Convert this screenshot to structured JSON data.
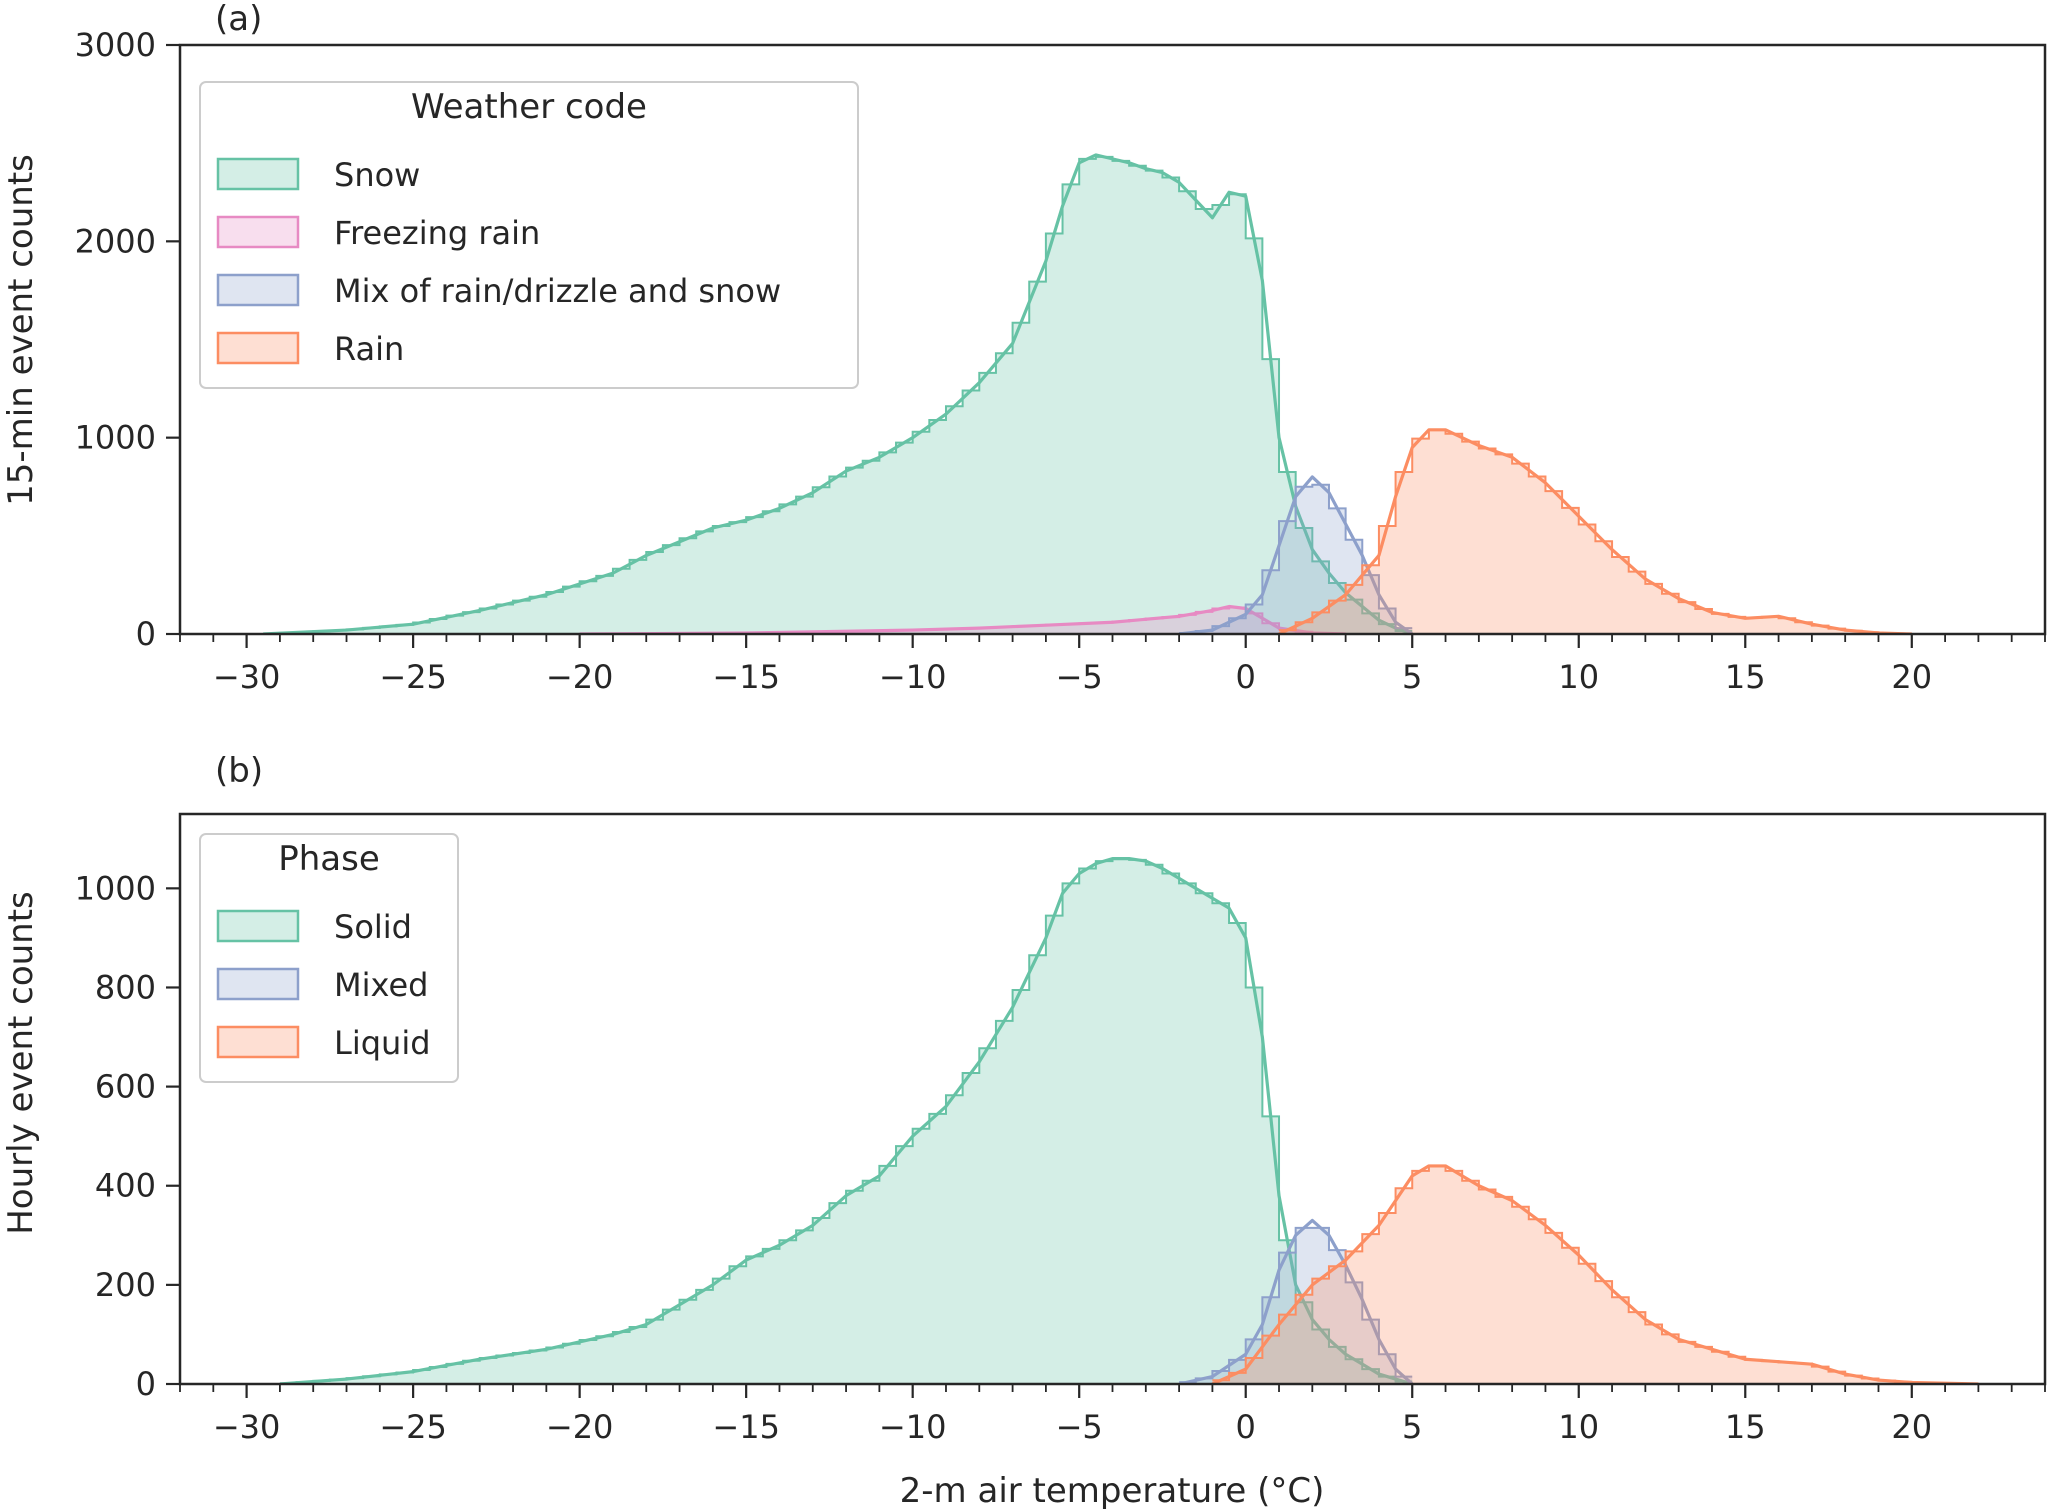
{
  "chart_data": [
    {
      "type": "area",
      "panel_label": "(a)",
      "ylabel": "15-min event counts",
      "xlabel": "",
      "xlim": [
        -32,
        24
      ],
      "ylim": [
        0,
        3000
      ],
      "xticks": [
        -30,
        -25,
        -20,
        -15,
        -10,
        -5,
        0,
        5,
        10,
        15,
        20
      ],
      "xtick_labels": [
        "−30",
        "−25",
        "−20",
        "−15",
        "−10",
        "−5",
        "0",
        "5",
        "10",
        "15",
        "20"
      ],
      "yticks": [
        0,
        1000,
        2000,
        3000
      ],
      "ytick_labels": [
        "0",
        "1000",
        "2000",
        "3000"
      ],
      "legend_title": "Weather code",
      "legend_position": "top-left",
      "grid": false,
      "bin_width": 0.5,
      "series": [
        {
          "name": "Snow",
          "color": "#66c2a5",
          "x": [
            -29.5,
            -27,
            -25,
            -23,
            -21,
            -19,
            -18,
            -17,
            -16,
            -15,
            -14,
            -13,
            -12,
            -11,
            -10,
            -9,
            -8,
            -7,
            -6,
            -5.5,
            -5,
            -4.5,
            -4,
            -3.5,
            -3,
            -2.5,
            -2,
            -1.5,
            -1,
            -0.5,
            0,
            0.5,
            1,
            1.5,
            2,
            2.5,
            3,
            3.5,
            4,
            4.5,
            5
          ],
          "y": [
            0,
            20,
            50,
            120,
            200,
            310,
            400,
            470,
            540,
            580,
            640,
            720,
            830,
            900,
            1000,
            1120,
            1280,
            1480,
            1900,
            2180,
            2400,
            2440,
            2420,
            2400,
            2370,
            2350,
            2300,
            2210,
            2120,
            2250,
            2230,
            1800,
            1000,
            650,
            430,
            310,
            210,
            140,
            70,
            30,
            0
          ]
        },
        {
          "name": "Freezing rain",
          "color": "#e78ac3",
          "x": [
            -20,
            -15,
            -10,
            -8,
            -6,
            -4,
            -2,
            -1,
            -0.5,
            0,
            0.5,
            1,
            2,
            3
          ],
          "y": [
            0,
            5,
            20,
            30,
            45,
            60,
            90,
            120,
            140,
            130,
            80,
            30,
            5,
            0
          ]
        },
        {
          "name": "Mix of rain/drizzle and snow",
          "color": "#8da0cb",
          "x": [
            -2,
            -1,
            0,
            0.5,
            1,
            1.5,
            2,
            2.5,
            3,
            3.5,
            4,
            4.5,
            5
          ],
          "y": [
            0,
            20,
            100,
            200,
            450,
            700,
            800,
            720,
            560,
            400,
            200,
            60,
            0
          ]
        },
        {
          "name": "Rain",
          "color": "#fc8d62",
          "x": [
            1,
            2,
            3,
            4,
            4.5,
            5,
            5.5,
            6,
            6.5,
            7,
            8,
            9,
            10,
            11,
            12,
            13,
            14,
            15,
            16,
            17,
            18,
            19,
            20
          ],
          "y": [
            0,
            80,
            200,
            400,
            700,
            950,
            1040,
            1040,
            1000,
            960,
            900,
            770,
            600,
            430,
            280,
            180,
            110,
            80,
            90,
            50,
            20,
            5,
            0
          ]
        }
      ]
    },
    {
      "type": "area",
      "panel_label": "(b)",
      "ylabel": "Hourly event counts",
      "xlabel": "2-m air temperature (°C)",
      "xlim": [
        -32,
        24
      ],
      "ylim": [
        0,
        1150
      ],
      "xticks": [
        -30,
        -25,
        -20,
        -15,
        -10,
        -5,
        0,
        5,
        10,
        15,
        20
      ],
      "xtick_labels": [
        "−30",
        "−25",
        "−20",
        "−15",
        "−10",
        "−5",
        "0",
        "5",
        "10",
        "15",
        "20"
      ],
      "yticks": [
        0,
        200,
        400,
        600,
        800,
        1000
      ],
      "ytick_labels": [
        "0",
        "200",
        "400",
        "600",
        "800",
        "1000"
      ],
      "legend_title": "Phase",
      "legend_position": "top-left",
      "grid": false,
      "bin_width": 0.5,
      "series": [
        {
          "name": "Solid",
          "color": "#66c2a5",
          "x": [
            -29,
            -27,
            -25,
            -23,
            -21,
            -19,
            -18,
            -17,
            -16,
            -15,
            -14,
            -13,
            -12,
            -11,
            -10,
            -9,
            -8,
            -7,
            -6,
            -5.5,
            -5,
            -4.5,
            -4,
            -3.5,
            -3,
            -2.5,
            -2,
            -1.5,
            -1,
            -0.5,
            0,
            0.5,
            1,
            1.5,
            2,
            2.5,
            3,
            3.5,
            4,
            4.5,
            5
          ],
          "y": [
            0,
            10,
            25,
            50,
            70,
            100,
            120,
            160,
            200,
            250,
            280,
            320,
            380,
            420,
            500,
            560,
            650,
            760,
            900,
            990,
            1030,
            1050,
            1060,
            1060,
            1055,
            1040,
            1020,
            1000,
            980,
            960,
            900,
            700,
            380,
            200,
            130,
            90,
            60,
            40,
            20,
            10,
            0
          ]
        },
        {
          "name": "Mixed",
          "color": "#8da0cb",
          "x": [
            -2,
            -1,
            0,
            0.5,
            1,
            1.5,
            2,
            2.5,
            3,
            3.5,
            4,
            4.5,
            5
          ],
          "y": [
            0,
            15,
            60,
            120,
            230,
            300,
            330,
            300,
            240,
            170,
            90,
            30,
            0
          ]
        },
        {
          "name": "Liquid",
          "color": "#fc8d62",
          "x": [
            -1,
            0,
            1,
            2,
            3,
            4,
            4.5,
            5,
            5.5,
            6,
            6.5,
            7,
            8,
            9,
            10,
            11,
            12,
            13,
            14,
            15,
            16,
            17,
            18,
            19,
            20,
            22
          ],
          "y": [
            0,
            30,
            120,
            200,
            250,
            320,
            370,
            420,
            440,
            440,
            420,
            400,
            370,
            320,
            260,
            190,
            130,
            90,
            70,
            50,
            45,
            40,
            20,
            8,
            3,
            0
          ]
        }
      ]
    }
  ]
}
